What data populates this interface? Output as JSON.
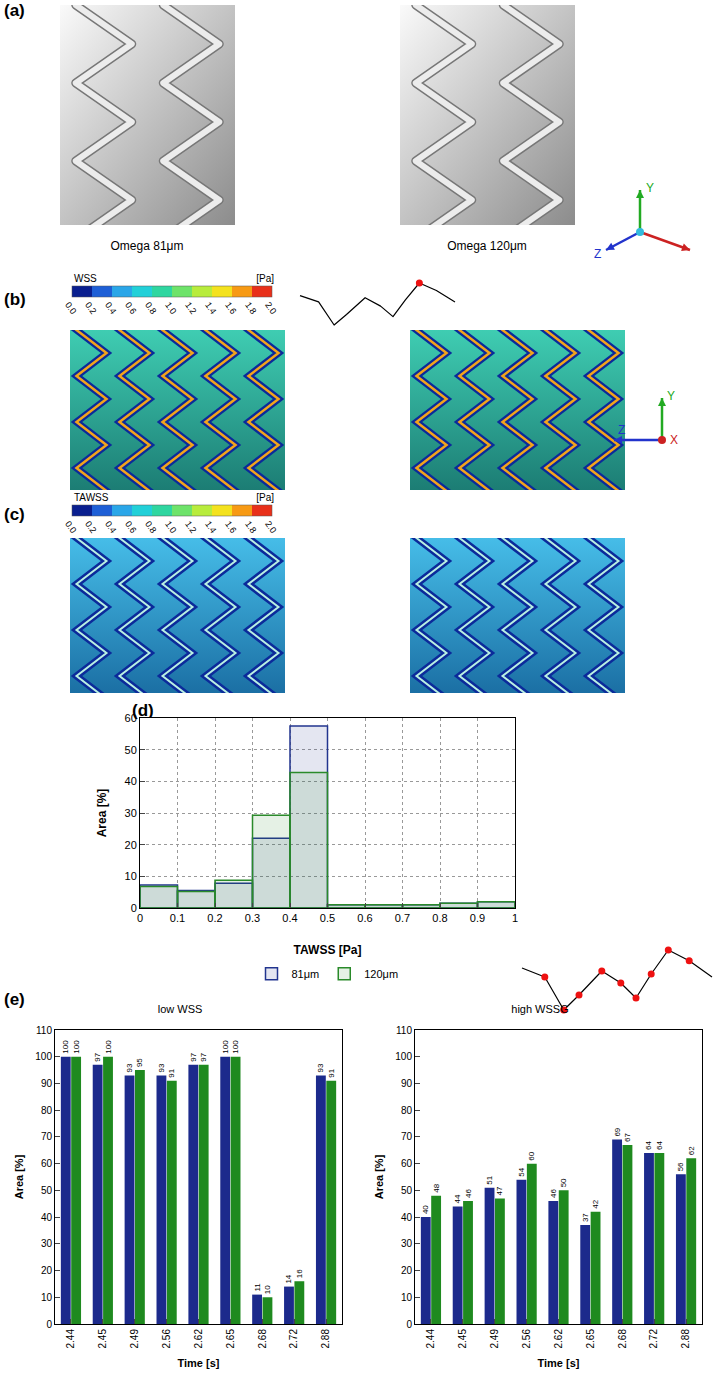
{
  "figure": {
    "panel_labels": [
      "(a)",
      "(b)",
      "(c)",
      "(d)",
      "(e)"
    ],
    "stent_captions": [
      "Omega 81μm",
      "Omega 120μm"
    ],
    "triad_a": [
      "Y",
      "Z"
    ],
    "triad_b": [
      "Y",
      "Z",
      "X"
    ],
    "colorbars": [
      {
        "title": "WSS",
        "unit": "[Pa]",
        "range": [
          0,
          2
        ],
        "ticks": [
          {
            "value": 0,
            "label": "0.0"
          },
          {
            "value": 0.2,
            "label": "0.2"
          },
          {
            "value": 0.4,
            "label": "0.4"
          },
          {
            "value": 0.6,
            "label": "0.6"
          },
          {
            "value": 0.8,
            "label": "0.8"
          },
          {
            "value": 1,
            "label": "1.0"
          },
          {
            "value": 1.2,
            "label": "1.2"
          },
          {
            "value": 1.4,
            "label": "1.4"
          },
          {
            "value": 1.6,
            "label": "1.6"
          },
          {
            "value": 1.8,
            "label": "1.8"
          },
          {
            "value": 2,
            "label": "2.0"
          }
        ]
      },
      {
        "title": "TAWSS",
        "unit": "[Pa]",
        "range": [
          0,
          2
        ],
        "ticks": [
          {
            "value": 0,
            "label": "0.0"
          },
          {
            "value": 0.2,
            "label": "0.2"
          },
          {
            "value": 0.4,
            "label": "0.4"
          },
          {
            "value": 0.6,
            "label": "0.6"
          },
          {
            "value": 0.8,
            "label": "0.8"
          },
          {
            "value": 1,
            "label": "1.0"
          },
          {
            "value": 1.2,
            "label": "1.2"
          },
          {
            "value": 1.4,
            "label": "1.4"
          },
          {
            "value": 1.6,
            "label": "1.6"
          },
          {
            "value": 1.8,
            "label": "1.8"
          },
          {
            "value": 2,
            "label": "2.0"
          }
        ]
      }
    ]
  },
  "chart_data": [
    {
      "type": "histogram",
      "xlabel": "TAWSS [Pa]",
      "ylabel": "Area [%]",
      "bins": [
        0,
        0.1,
        0.2,
        0.3,
        0.4,
        0.5,
        0.6,
        0.7,
        0.8,
        0.9,
        1
      ],
      "series": [
        {
          "name": "81μm",
          "color": "#22358f",
          "values": [
            7.3,
            5.5,
            7.8,
            22,
            57.5,
            1,
            1,
            1,
            1.5,
            2
          ]
        },
        {
          "name": "120μm",
          "color": "#2a8a2a",
          "values": [
            6.8,
            5.2,
            8.8,
            29.3,
            42.8,
            1,
            1,
            1,
            1.5,
            2
          ]
        }
      ],
      "xlim": [
        0,
        1
      ],
      "ylim": [
        0,
        60
      ],
      "xticks": [
        0,
        0.1,
        0.2,
        0.3,
        0.4,
        0.5,
        0.6,
        0.7,
        0.8,
        0.9,
        1
      ],
      "yticks": [
        0,
        10,
        20,
        30,
        40,
        50,
        60
      ],
      "grid": true,
      "legend": "bottom"
    },
    {
      "type": "bar",
      "title": "low WSS",
      "xlabel": "Time [s]",
      "ylabel": "Area [%]",
      "categories": [
        "2.44",
        "2.45",
        "2.49",
        "2.56",
        "2.62",
        "2.65",
        "2.68",
        "2.72",
        "2.88"
      ],
      "series": [
        {
          "color": "#1c2a8c",
          "values": [
            100,
            97,
            93,
            93,
            97,
            100,
            11,
            14,
            93
          ]
        },
        {
          "color": "#1f8a1f",
          "values": [
            100,
            100,
            95,
            91,
            97,
            100,
            10,
            16,
            91
          ]
        }
      ],
      "ylim": [
        0,
        110
      ],
      "yticks": [
        0,
        10,
        20,
        30,
        40,
        50,
        60,
        70,
        80,
        90,
        100,
        110
      ],
      "data_labels": true
    },
    {
      "type": "bar",
      "title": "high WSSG",
      "xlabel": "Time [s]",
      "ylabel": "Area [%]",
      "categories": [
        "2.44",
        "2.45",
        "2.49",
        "2.56",
        "2.62",
        "2.65",
        "2.68",
        "2.72",
        "2.88"
      ],
      "series": [
        {
          "color": "#1c2a8c",
          "values": [
            40,
            44,
            51,
            54,
            46,
            37,
            69,
            64,
            56
          ]
        },
        {
          "color": "#1f8a1f",
          "values": [
            48,
            46,
            47,
            60,
            50,
            42,
            67,
            64,
            62
          ]
        }
      ],
      "ylim": [
        0,
        110
      ],
      "yticks": [
        0,
        10,
        20,
        30,
        40,
        50,
        60,
        70,
        80,
        90,
        100,
        110
      ],
      "data_labels": true
    }
  ]
}
